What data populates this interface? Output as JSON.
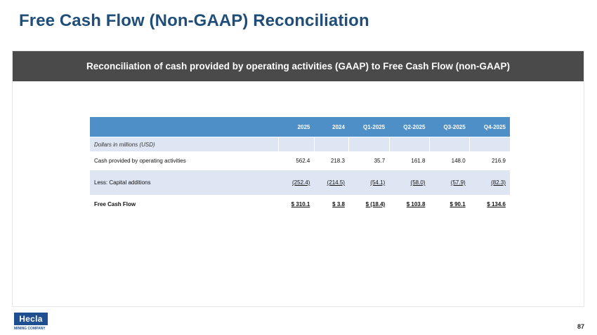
{
  "title": "Free Cash Flow (Non-GAAP) Reconciliation",
  "panel_header": "Reconciliation of cash provided by operating activities (GAAP) to Free Cash Flow (non-GAAP)",
  "table": {
    "columns": [
      "2025",
      "2024",
      "Q1-2025",
      "Q2-2025",
      "Q3-2025",
      "Q4-2025"
    ],
    "units_label": "Dollars in millions (USD)",
    "rows": {
      "ops": {
        "label": "Cash provided by operating activities",
        "values": [
          "562.4",
          "218.3",
          "35.7",
          "161.8",
          "148.0",
          "216.9"
        ]
      },
      "capex": {
        "label": "Less: Capital additions",
        "values": [
          "(252.4)",
          "(214.5)",
          "(54.1)",
          "(58.0)",
          "(57.9)",
          "(82.3)"
        ]
      },
      "fcf": {
        "label": "Free Cash Flow",
        "values": [
          "$ 310.1",
          "$ 3.8",
          "$ (18.4)",
          "$ 103.8",
          "$ 90.1",
          "$ 134.6"
        ]
      }
    }
  },
  "logo": {
    "name": "Hecla",
    "sub": "MINING COMPANY"
  },
  "page_number": "87",
  "colors": {
    "title": "#1f4e79",
    "header_bar": "#4a4a4a",
    "table_header": "#4f8fc7",
    "band": "#dfe6f3"
  }
}
